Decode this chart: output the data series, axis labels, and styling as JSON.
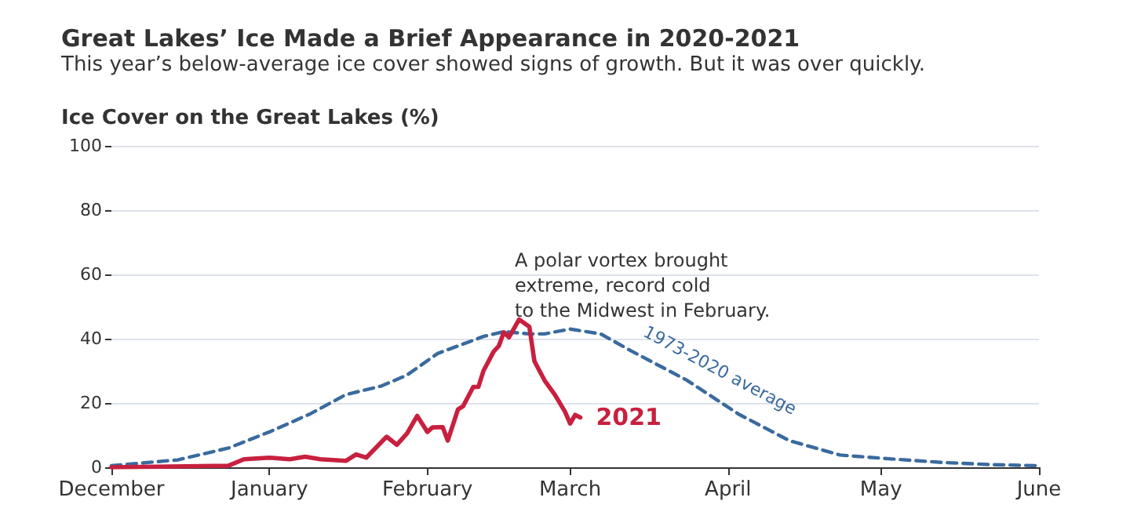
{
  "chart_data": {
    "type": "line",
    "title": "Great Lakes’ Ice Made a Brief Appearance in 2020-2021",
    "subtitle": "This year’s below-average ice cover showed signs of growth. But it was over quickly.",
    "ylabel": "Ice Cover on the Great Lakes (%)",
    "xlim": [
      "2020-12-01",
      "2021-06-01"
    ],
    "xticks": [
      {
        "value": "2020-12-01",
        "label": "December"
      },
      {
        "value": "2021-01-01",
        "label": "January"
      },
      {
        "value": "2021-02-01",
        "label": "February"
      },
      {
        "value": "2021-03-01",
        "label": "March"
      },
      {
        "value": "2021-04-01",
        "label": "April"
      },
      {
        "value": "2021-05-01",
        "label": "May"
      },
      {
        "value": "2021-06-01",
        "label": "June"
      }
    ],
    "ylim": [
      0,
      100
    ],
    "yticks": [
      0,
      20,
      40,
      60,
      80,
      100
    ],
    "grid": "y",
    "legend": false,
    "marker": "none",
    "annotations": [
      "A polar vortex brought\nextreme, record cold\nto the Midwest in February."
    ],
    "series": [
      {
        "name": "1973-2020 average",
        "color": "#3a6a9e",
        "line_style": "dashed",
        "x": [
          "2020-12-01",
          "2020-12-14",
          "2020-12-24",
          "2021-01-01",
          "2021-01-09",
          "2021-01-16",
          "2021-01-23",
          "2021-01-28",
          "2021-02-03",
          "2021-02-12",
          "2021-02-16",
          "2021-02-21",
          "2021-02-24",
          "2021-03-01",
          "2021-03-07",
          "2021-03-13",
          "2021-03-24",
          "2021-04-03",
          "2021-04-13",
          "2021-04-23",
          "2021-05-03",
          "2021-05-13",
          "2021-05-23",
          "2021-06-01"
        ],
        "values": [
          0.5,
          2.3,
          6,
          11,
          16.6,
          22.6,
          25.3,
          28.7,
          35.4,
          40.7,
          42.2,
          41.5,
          41.5,
          43,
          41.5,
          36.2,
          27,
          16.6,
          8.3,
          3.8,
          2.6,
          1.5,
          0.8,
          0.5
        ]
      },
      {
        "name": "2021",
        "color": "#c8203f",
        "line_style": "solid",
        "x": [
          "2020-12-01",
          "2020-12-24",
          "2020-12-27",
          "2021-01-01",
          "2021-01-05",
          "2021-01-08",
          "2021-01-11",
          "2021-01-16",
          "2021-01-18",
          "2021-01-20",
          "2021-01-24",
          "2021-01-26",
          "2021-01-28",
          "2021-01-30",
          "2021-02-01",
          "2021-02-02",
          "2021-02-04",
          "2021-02-05",
          "2021-02-07",
          "2021-02-08",
          "2021-02-10",
          "2021-02-11",
          "2021-02-12",
          "2021-02-14",
          "2021-02-15",
          "2021-02-16",
          "2021-02-17",
          "2021-02-19",
          "2021-02-21",
          "2021-02-22",
          "2021-02-24",
          "2021-02-26",
          "2021-02-28",
          "2021-03-01",
          "2021-03-02",
          "2021-03-03"
        ],
        "values": [
          0,
          0.5,
          2.5,
          3,
          2.5,
          3.3,
          2.5,
          2,
          4,
          3,
          9.5,
          7,
          10.5,
          16,
          11,
          12.4,
          12.5,
          8.3,
          18,
          19,
          25,
          25,
          30,
          36,
          37.7,
          42,
          40.4,
          46,
          43.7,
          33,
          27,
          22.6,
          17.3,
          13.6,
          16.3,
          15.5
        ]
      }
    ]
  }
}
